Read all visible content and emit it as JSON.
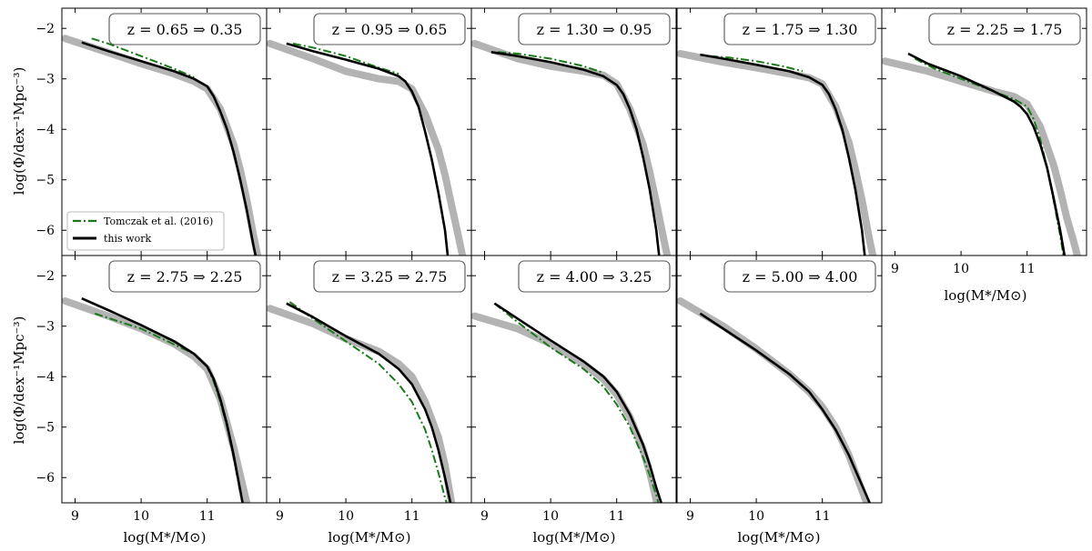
{
  "figure": {
    "ylabel": "log(Φ/dex⁻¹Mpc⁻³)",
    "xlabel": "log(M*/M⊙)",
    "legend": {
      "tomczak": "Tomczak et al. (2016)",
      "this_work": "this work"
    },
    "colors": {
      "reference_band": "#b3b3b3",
      "tomczak": "#1a7a1a",
      "this_work": "#000000"
    }
  },
  "chart_data": [
    {
      "type": "line",
      "title": "z = 0.65 ⇒ 0.35",
      "xlim": [
        8.8,
        11.9
      ],
      "ylim": [
        -6.5,
        -1.6
      ],
      "xticks": [
        9,
        10,
        11
      ],
      "yticks": [
        -2,
        -3,
        -4,
        -5,
        -6
      ],
      "series": [
        {
          "name": "this work",
          "x": [
            9.1,
            9.5,
            10.0,
            10.5,
            10.8,
            11.0,
            11.1,
            11.2,
            11.3,
            11.4,
            11.5,
            11.6,
            11.7,
            11.75
          ],
          "y": [
            -2.28,
            -2.45,
            -2.65,
            -2.85,
            -3.0,
            -3.15,
            -3.35,
            -3.65,
            -4.0,
            -4.45,
            -5.0,
            -5.6,
            -6.3,
            -6.6
          ]
        },
        {
          "name": "Tomczak et al. (2016)",
          "x": [
            9.25,
            9.5,
            10.0,
            10.5,
            10.8
          ],
          "y": [
            -2.2,
            -2.3,
            -2.55,
            -2.8,
            -2.97
          ]
        },
        {
          "role": "band",
          "x": [
            8.85,
            9.5,
            10.0,
            10.5,
            10.8,
            11.0,
            11.2,
            11.4,
            11.5,
            11.6,
            11.7,
            11.78
          ],
          "y": [
            -2.2,
            -2.48,
            -2.7,
            -2.9,
            -3.05,
            -3.2,
            -3.6,
            -4.3,
            -4.8,
            -5.4,
            -6.1,
            -6.6
          ]
        }
      ]
    },
    {
      "type": "line",
      "title": "z = 0.95 ⇒ 0.65",
      "xlim": [
        8.8,
        11.9
      ],
      "ylim": [
        -6.5,
        -1.6
      ],
      "xticks": [
        9,
        10,
        11
      ],
      "yticks": [
        -2,
        -3,
        -4,
        -5,
        -6
      ],
      "series": [
        {
          "name": "this work",
          "x": [
            9.1,
            9.5,
            10.0,
            10.5,
            10.8,
            10.9,
            11.0,
            11.1,
            11.2,
            11.3,
            11.4,
            11.5,
            11.55
          ],
          "y": [
            -2.3,
            -2.45,
            -2.62,
            -2.8,
            -2.95,
            -3.05,
            -3.25,
            -3.55,
            -4.05,
            -4.6,
            -5.25,
            -6.0,
            -6.6
          ]
        },
        {
          "name": "Tomczak et al. (2016)",
          "x": [
            9.2,
            9.5,
            10.0,
            10.5,
            10.8
          ],
          "y": [
            -2.3,
            -2.38,
            -2.55,
            -2.78,
            -2.9
          ]
        },
        {
          "role": "band",
          "x": [
            8.85,
            9.5,
            10.0,
            10.5,
            10.8,
            11.0,
            11.2,
            11.4,
            11.5,
            11.6,
            11.7,
            11.78
          ],
          "y": [
            -2.3,
            -2.6,
            -2.85,
            -3.0,
            -3.05,
            -3.2,
            -3.7,
            -4.4,
            -4.9,
            -5.5,
            -6.1,
            -6.6
          ]
        }
      ]
    },
    {
      "type": "line",
      "title": "z = 1.30 ⇒ 0.95",
      "xlim": [
        8.8,
        11.9
      ],
      "ylim": [
        -6.5,
        -1.6
      ],
      "xticks": [
        9,
        10,
        11
      ],
      "yticks": [
        -2,
        -3,
        -4,
        -5,
        -6
      ],
      "series": [
        {
          "name": "this work",
          "x": [
            9.1,
            9.5,
            10.0,
            10.5,
            10.8,
            11.0,
            11.1,
            11.2,
            11.3,
            11.4,
            11.5,
            11.6,
            11.65
          ],
          "y": [
            -2.47,
            -2.55,
            -2.67,
            -2.82,
            -2.95,
            -3.12,
            -3.3,
            -3.6,
            -4.0,
            -4.55,
            -5.2,
            -6.0,
            -6.6
          ]
        },
        {
          "name": "Tomczak et al. (2016)",
          "x": [
            9.2,
            9.5,
            10.0,
            10.5,
            10.8
          ],
          "y": [
            -2.47,
            -2.5,
            -2.6,
            -2.75,
            -2.88
          ]
        },
        {
          "role": "band",
          "x": [
            8.85,
            9.5,
            10.0,
            10.5,
            10.8,
            11.0,
            11.2,
            11.4,
            11.5,
            11.6,
            11.7,
            11.78
          ],
          "y": [
            -2.3,
            -2.6,
            -2.75,
            -2.85,
            -2.93,
            -3.1,
            -3.6,
            -4.3,
            -4.85,
            -5.45,
            -6.1,
            -6.6
          ]
        }
      ]
    },
    {
      "type": "line",
      "title": "z = 1.75 ⇒ 1.30",
      "xlim": [
        8.8,
        11.9
      ],
      "ylim": [
        -6.5,
        -1.6
      ],
      "xticks": [
        9,
        10,
        11
      ],
      "yticks": [
        -2,
        -3,
        -4,
        -5,
        -6
      ],
      "series": [
        {
          "name": "this work",
          "x": [
            9.15,
            9.5,
            10.0,
            10.5,
            10.8,
            11.0,
            11.1,
            11.2,
            11.3,
            11.4,
            11.5,
            11.6,
            11.65
          ],
          "y": [
            -2.52,
            -2.6,
            -2.72,
            -2.85,
            -2.97,
            -3.12,
            -3.3,
            -3.6,
            -4.0,
            -4.55,
            -5.2,
            -6.0,
            -6.6
          ]
        },
        {
          "name": "Tomczak et al. (2016)",
          "x": [
            9.3,
            9.6,
            10.0,
            10.4,
            10.7
          ],
          "y": [
            -2.55,
            -2.58,
            -2.65,
            -2.75,
            -2.85
          ]
        },
        {
          "role": "band",
          "x": [
            8.85,
            9.5,
            10.0,
            10.5,
            10.8,
            11.0,
            11.2,
            11.4,
            11.5,
            11.6,
            11.7,
            11.78
          ],
          "y": [
            -2.5,
            -2.67,
            -2.78,
            -2.9,
            -2.98,
            -3.1,
            -3.55,
            -4.25,
            -4.8,
            -5.4,
            -6.1,
            -6.6
          ]
        }
      ]
    },
    {
      "type": "line",
      "title": "z = 2.25 ⇒ 1.75",
      "xlim": [
        8.8,
        11.9
      ],
      "ylim": [
        -6.5,
        -1.6
      ],
      "xticks": [
        9,
        10,
        11
      ],
      "yticks": [
        -2,
        -3,
        -4,
        -5,
        -6
      ],
      "series": [
        {
          "name": "this work",
          "x": [
            9.2,
            9.5,
            10.0,
            10.5,
            10.8,
            10.9,
            11.0,
            11.1,
            11.2,
            11.3,
            11.4,
            11.5,
            11.58
          ],
          "y": [
            -2.5,
            -2.7,
            -2.95,
            -3.25,
            -3.45,
            -3.55,
            -3.7,
            -3.95,
            -4.3,
            -4.75,
            -5.35,
            -6.0,
            -6.6
          ]
        },
        {
          "name": "Tomczak et al. (2016)",
          "x": [
            9.3,
            9.6,
            10.0,
            10.4,
            10.8,
            11.0,
            11.1,
            11.2,
            11.3,
            11.4,
            11.5,
            11.55
          ],
          "y": [
            -2.6,
            -2.8,
            -3.0,
            -3.2,
            -3.4,
            -3.55,
            -3.8,
            -4.2,
            -4.75,
            -5.4,
            -6.1,
            -6.5
          ]
        },
        {
          "role": "band",
          "x": [
            8.85,
            9.5,
            10.0,
            10.5,
            10.8,
            11.0,
            11.2,
            11.4,
            11.5,
            11.6,
            11.7,
            11.78
          ],
          "y": [
            -2.65,
            -2.85,
            -3.05,
            -3.25,
            -3.35,
            -3.5,
            -3.95,
            -4.7,
            -5.2,
            -5.75,
            -6.2,
            -6.6
          ]
        }
      ]
    },
    {
      "type": "line",
      "title": "z = 2.75 ⇒ 2.25",
      "xlim": [
        8.8,
        11.9
      ],
      "ylim": [
        -6.5,
        -1.6
      ],
      "xticks": [
        9,
        10,
        11
      ],
      "yticks": [
        -2,
        -3,
        -4,
        -5,
        -6
      ],
      "series": [
        {
          "name": "this work",
          "x": [
            9.1,
            9.5,
            10.0,
            10.5,
            10.8,
            11.0,
            11.1,
            11.2,
            11.3,
            11.4,
            11.5,
            11.55
          ],
          "y": [
            -2.45,
            -2.68,
            -2.98,
            -3.3,
            -3.55,
            -3.8,
            -4.05,
            -4.45,
            -4.95,
            -5.55,
            -6.25,
            -6.6
          ]
        },
        {
          "name": "Tomczak et al. (2016)",
          "x": [
            9.3,
            9.6,
            10.0,
            10.4,
            10.8,
            11.0,
            11.1,
            11.2,
            11.3,
            11.4,
            11.5,
            11.55
          ],
          "y": [
            -2.75,
            -2.88,
            -3.05,
            -3.3,
            -3.55,
            -3.8,
            -4.1,
            -4.5,
            -5.0,
            -5.6,
            -6.3,
            -6.6
          ]
        },
        {
          "role": "band",
          "x": [
            8.85,
            9.5,
            10.0,
            10.5,
            10.8,
            11.0,
            11.2,
            11.4,
            11.5,
            11.6
          ],
          "y": [
            -2.5,
            -2.8,
            -3.05,
            -3.35,
            -3.6,
            -3.85,
            -4.45,
            -5.4,
            -5.95,
            -6.5
          ]
        }
      ]
    },
    {
      "type": "line",
      "title": "z = 3.25 ⇒ 2.75",
      "xlim": [
        8.8,
        11.9
      ],
      "ylim": [
        -6.5,
        -1.6
      ],
      "xticks": [
        9,
        10,
        11
      ],
      "yticks": [
        -2,
        -3,
        -4,
        -5,
        -6
      ],
      "series": [
        {
          "name": "this work",
          "x": [
            9.1,
            9.5,
            10.0,
            10.5,
            10.8,
            11.0,
            11.2,
            11.3,
            11.4,
            11.5,
            11.6
          ],
          "y": [
            -2.55,
            -2.82,
            -3.2,
            -3.55,
            -3.85,
            -4.15,
            -4.65,
            -5.0,
            -5.45,
            -6.0,
            -6.6
          ]
        },
        {
          "name": "Tomczak et al. (2016)",
          "x": [
            9.15,
            9.5,
            10.0,
            10.5,
            10.8,
            11.0,
            11.2,
            11.3,
            11.4,
            11.5,
            11.55
          ],
          "y": [
            -2.52,
            -2.85,
            -3.3,
            -3.75,
            -4.15,
            -4.5,
            -5.05,
            -5.45,
            -5.9,
            -6.4,
            -6.6
          ]
        },
        {
          "role": "band",
          "x": [
            8.85,
            9.5,
            10.0,
            10.5,
            10.8,
            11.0,
            11.2,
            11.4,
            11.5,
            11.6
          ],
          "y": [
            -2.65,
            -2.95,
            -3.25,
            -3.5,
            -3.75,
            -4.0,
            -4.5,
            -5.2,
            -5.75,
            -6.5
          ]
        }
      ]
    },
    {
      "type": "line",
      "title": "z = 4.00 ⇒ 3.25",
      "xlim": [
        8.8,
        11.9
      ],
      "ylim": [
        -6.5,
        -1.6
      ],
      "xticks": [
        9,
        10,
        11
      ],
      "yticks": [
        -2,
        -3,
        -4,
        -5,
        -6
      ],
      "series": [
        {
          "name": "this work",
          "x": [
            9.15,
            9.5,
            10.0,
            10.5,
            10.8,
            11.0,
            11.2,
            11.4,
            11.5,
            11.6,
            11.7
          ],
          "y": [
            -2.55,
            -2.85,
            -3.28,
            -3.7,
            -4.0,
            -4.3,
            -4.75,
            -5.35,
            -5.75,
            -6.2,
            -6.6
          ]
        },
        {
          "name": "Tomczak et al. (2016)",
          "x": [
            9.15,
            9.5,
            10.0,
            10.5,
            10.8,
            11.0,
            11.2,
            11.4,
            11.5,
            11.6,
            11.65
          ],
          "y": [
            -2.55,
            -2.92,
            -3.42,
            -3.85,
            -4.2,
            -4.55,
            -5.0,
            -5.6,
            -5.95,
            -6.35,
            -6.6
          ]
        },
        {
          "role": "band",
          "x": [
            8.85,
            9.5,
            10.0,
            10.5,
            10.8,
            11.0,
            11.2,
            11.4,
            11.5,
            11.6,
            11.65
          ],
          "y": [
            -2.8,
            -3.05,
            -3.35,
            -3.75,
            -4.05,
            -4.35,
            -4.8,
            -5.45,
            -5.9,
            -6.45,
            -6.6
          ]
        }
      ]
    },
    {
      "type": "line",
      "title": "z = 5.00 ⇒ 4.00",
      "xlim": [
        8.8,
        11.9
      ],
      "ylim": [
        -6.5,
        -1.6
      ],
      "xticks": [
        9,
        10,
        11
      ],
      "yticks": [
        -2,
        -3,
        -4,
        -5,
        -6
      ],
      "series": [
        {
          "name": "this work",
          "x": [
            9.15,
            9.5,
            10.0,
            10.5,
            10.8,
            11.0,
            11.2,
            11.4,
            11.6,
            11.75
          ],
          "y": [
            -2.75,
            -3.05,
            -3.48,
            -3.95,
            -4.3,
            -4.65,
            -5.05,
            -5.55,
            -6.15,
            -6.6
          ]
        },
        {
          "role": "band",
          "x": [
            8.85,
            9.5,
            10.0,
            10.5,
            10.8,
            11.0,
            11.2,
            11.4,
            11.6,
            11.7
          ],
          "y": [
            -2.5,
            -3.0,
            -3.45,
            -3.95,
            -4.3,
            -4.6,
            -5.0,
            -5.55,
            -6.25,
            -6.6
          ]
        }
      ]
    }
  ]
}
